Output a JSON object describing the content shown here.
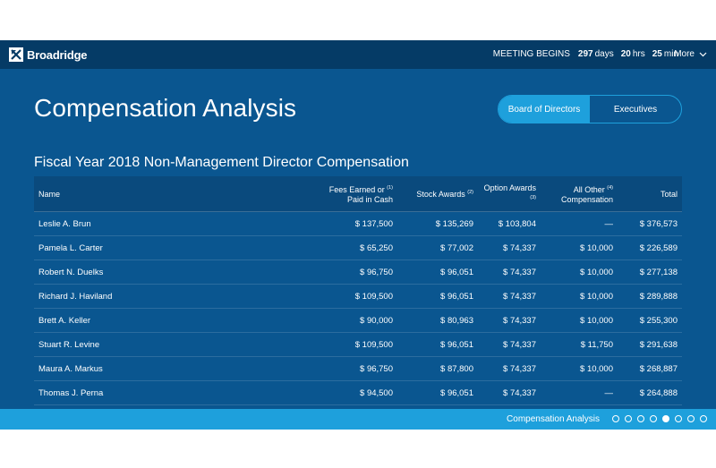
{
  "header": {
    "brand": "Broadridge",
    "meeting_label": "MEETING BEGINS",
    "countdown": {
      "days_value": "297",
      "days_unit": "days",
      "hrs_value": "20",
      "hrs_unit": "hrs",
      "min_value": "25",
      "min_unit": "min"
    },
    "more_label": "More"
  },
  "main": {
    "title": "Compensation Analysis",
    "tabs": [
      {
        "label": "Board of Directors",
        "active": true
      },
      {
        "label": "Executives",
        "active": false
      }
    ],
    "table_title": "Fiscal Year 2018 Non-Management Director Compensation"
  },
  "table": {
    "headers": {
      "name": "Name",
      "fees_line1": "Fees Earned or",
      "fees_sup": "(1)",
      "fees_line2": "Paid in Cash",
      "stock": "Stock Awards",
      "stock_sup": "(2)",
      "option": "Option Awards",
      "option_sup": "(3)",
      "other_line1": "All Other",
      "other_sup": "(4)",
      "other_line2": "Compensation",
      "total": "Total"
    },
    "rows": [
      {
        "name": "Leslie A. Brun",
        "fees": "$ 137,500",
        "stock": "$ 135,269",
        "option": "$ 103,804",
        "other": "—",
        "total": "$ 376,573"
      },
      {
        "name": "Pamela L. Carter",
        "fees": "$ 65,250",
        "stock": "$ 77,002",
        "option": "$ 74,337",
        "other": "$ 10,000",
        "total": "$ 226,589"
      },
      {
        "name": "Robert N. Duelks",
        "fees": "$ 96,750",
        "stock": "$ 96,051",
        "option": "$ 74,337",
        "other": "$ 10,000",
        "total": "$ 277,138"
      },
      {
        "name": "Richard J. Haviland",
        "fees": "$ 109,500",
        "stock": "$ 96,051",
        "option": "$ 74,337",
        "other": "$ 10,000",
        "total": "$ 289,888"
      },
      {
        "name": "Brett A. Keller",
        "fees": "$ 90,000",
        "stock": "$ 80,963",
        "option": "$ 74,337",
        "other": "$ 10,000",
        "total": "$ 255,300"
      },
      {
        "name": "Stuart R. Levine",
        "fees": "$ 109,500",
        "stock": "$ 96,051",
        "option": "$ 74,337",
        "other": "$ 11,750",
        "total": "$ 291,638"
      },
      {
        "name": "Maura A. Markus",
        "fees": "$ 96,750",
        "stock": "$ 87,800",
        "option": "$ 74,337",
        "other": "$ 10,000",
        "total": "$ 268,887"
      },
      {
        "name": "Thomas J. Perna",
        "fees": "$ 94,500",
        "stock": "$ 96,051",
        "option": "$ 74,337",
        "other": "—",
        "total": "$ 264,888"
      }
    ]
  },
  "footer": {
    "section_label": "Compensation Analysis",
    "dots_total": 8,
    "active_dot": 5
  },
  "colors": {
    "topbar": "#053b66",
    "background": "#0a5690",
    "accent": "#1ea0dc"
  },
  "icons": {
    "logo": "broadridge-logo-icon",
    "more": "chevron-down-icon"
  }
}
